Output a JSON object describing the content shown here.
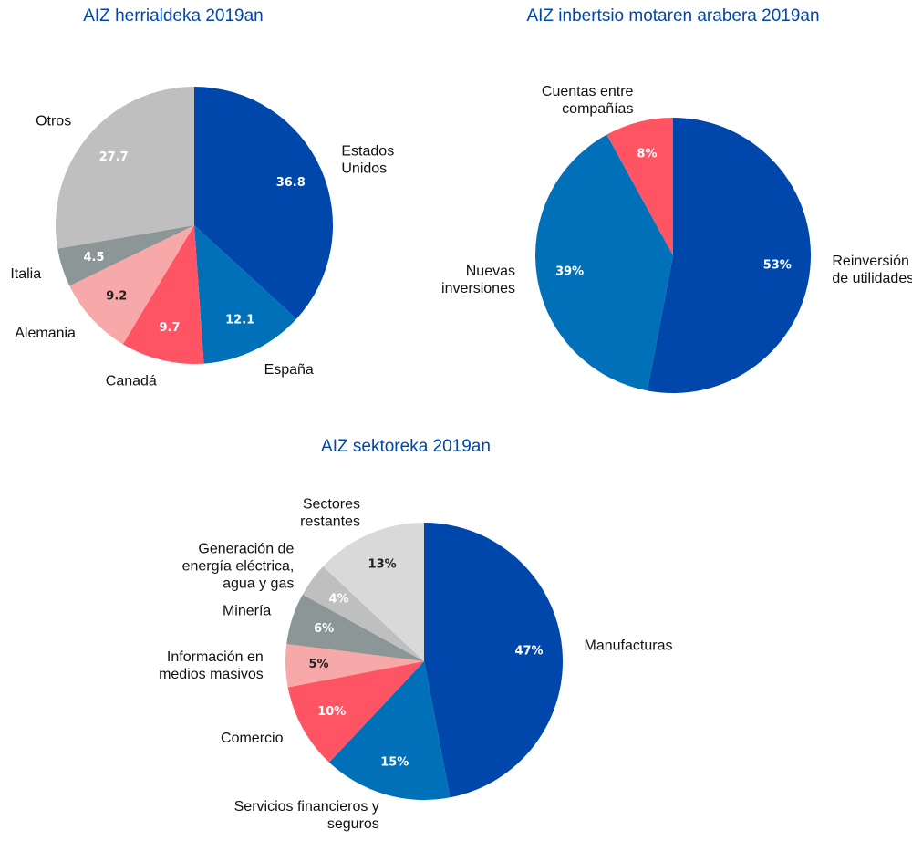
{
  "chart_data": [
    {
      "type": "pie",
      "title": "AIZ herrialdeka 2019an",
      "categories": [
        "Estados\nUnidos",
        "España",
        "Canadá",
        "Alemania",
        "Italia",
        "Otros"
      ],
      "values": [
        36.8,
        12.1,
        9.7,
        9.2,
        4.5,
        27.7
      ],
      "colors": [
        "#0047ab",
        "#0070b8",
        "#ff5464",
        "#f7a8a8",
        "#8c9696",
        "#bfbfbf"
      ]
    },
    {
      "type": "pie",
      "title": "AIZ inbertsio motaren arabera 2019an",
      "categories": [
        "Reinversión\nde utilidades",
        "Nuevas\ninversiones",
        "Cuentas entre\ncompañías"
      ],
      "values": [
        53,
        39,
        8
      ],
      "value_labels": [
        "53%",
        "39%",
        "8%"
      ],
      "colors": [
        "#0047ab",
        "#0070b8",
        "#ff5464"
      ]
    },
    {
      "type": "pie",
      "title": "AIZ sektoreka 2019an",
      "categories": [
        "Manufacturas",
        "Servicios financieros y\nseguros",
        "Comercio",
        "Información en\nmedios masivos",
        "Minería",
        "Generación de\nenergía eléctrica,\nagua y gas",
        "Sectores\nrestantes"
      ],
      "values": [
        47,
        15,
        10,
        5,
        6,
        4,
        13
      ],
      "value_labels": [
        "47%",
        "15%",
        "10%",
        "5%",
        "6%",
        "4%",
        "13%"
      ],
      "colors": [
        "#0047ab",
        "#0070b8",
        "#ff5464",
        "#f7a8a8",
        "#8c9696",
        "#bfbfbf",
        "#d9d9d9"
      ]
    }
  ]
}
